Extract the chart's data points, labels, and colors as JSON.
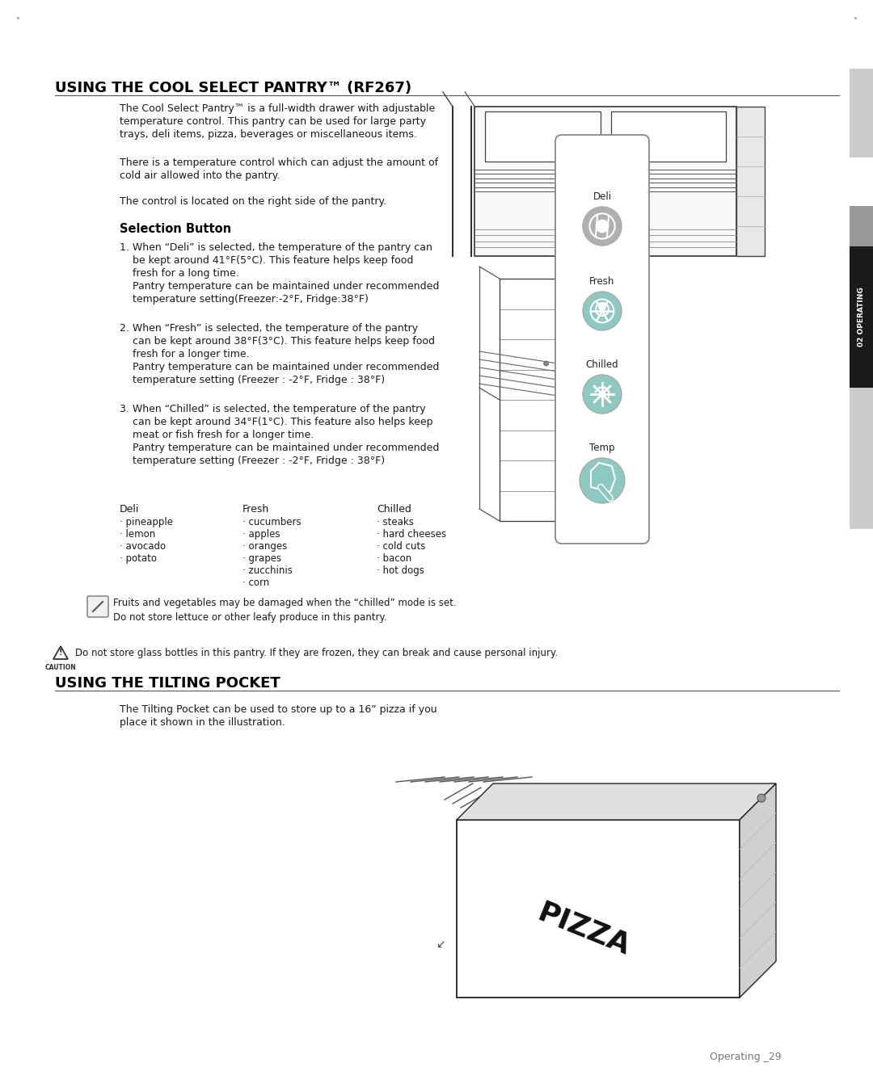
{
  "bg_color": "#ffffff",
  "body_text_color": "#1a1a1a",
  "title_color": "#000000",
  "section1_title": "USING THE COOL SELECT PANTRY™ (RF267)",
  "section2_title": "USING THE TILTING POCKET",
  "selection_button_heading": "Selection Button",
  "side_tab_text": "02 OPERATING",
  "para1": "The Cool Select Pantry™ is a full-width drawer with adjustable\ntemperature control. This pantry can be used for large party\ntrays, deli items, pizza, beverages or miscellaneous items.",
  "para2": "There is a temperature control which can adjust the amount of\ncold air allowed into the pantry.",
  "para3": "The control is located on the right side of the pantry.",
  "item1_line1": "1. When “Deli” is selected, the temperature of the pantry can",
  "item1_line2": "    be kept around 41°F(5°C). This feature helps keep food",
  "item1_line3": "    fresh for a long time.",
  "item1_line4": "    Pantry temperature can be maintained under recommended",
  "item1_line5": "    temperature setting(Freezer:-2°F, Fridge:38°F)",
  "item2_line1": "2. When “Fresh” is selected, the temperature of the pantry",
  "item2_line2": "    can be kept around 38°F(3°C). This feature helps keep food",
  "item2_line3": "    fresh for a longer time.",
  "item2_line4": "    Pantry temperature can be maintained under recommended",
  "item2_line5": "    temperature setting (Freezer : -2°F, Fridge : 38°F)",
  "item3_line1": "3. When “Chilled” is selected, the temperature of the pantry",
  "item3_line2": "    can be kept around 34°F(1°C). This feature also helps keep",
  "item3_line3": "    meat or fish fresh for a longer time.",
  "item3_line4": "    Pantry temperature can be maintained under recommended",
  "item3_line5": "    temperature setting (Freezer : -2°F, Fridge : 38°F)",
  "deli_col_header": "Deli",
  "fresh_col_header": "Fresh",
  "chilled_col_header": "Chilled",
  "deli_items": [
    "· pineapple",
    "· lemon",
    "· avocado",
    "· potato"
  ],
  "fresh_items": [
    "· cucumbers",
    "· apples",
    "· oranges",
    "· grapes",
    "· zucchinis",
    "· corn"
  ],
  "chilled_items": [
    "· steaks",
    "· hard cheeses",
    "· cold cuts",
    "· bacon",
    "· hot dogs"
  ],
  "note_text": "Fruits and vegetables may be damaged when the “chilled” mode is set.\nDo not store lettuce or other leafy produce in this pantry.",
  "caution_text": "Do not store glass bottles in this pantry. If they are frozen, they can break and cause personal injury.",
  "tilting_para": "The Tilting Pocket can be used to store up to a 16” pizza if you\nplace it shown in the illustration.",
  "footer_text": "Operating _29",
  "btn_deli_color": "#b0b0b0",
  "btn_fresh_color": "#8ec8c2",
  "btn_chilled_color": "#8ec8c2",
  "btn_temp_color": "#8ec8c2",
  "panel_border_color": "#aaaaaa",
  "tab_dark_color": "#1a1a1a",
  "tab_gray_color": "#999999",
  "tab_light_color": "#cccccc"
}
